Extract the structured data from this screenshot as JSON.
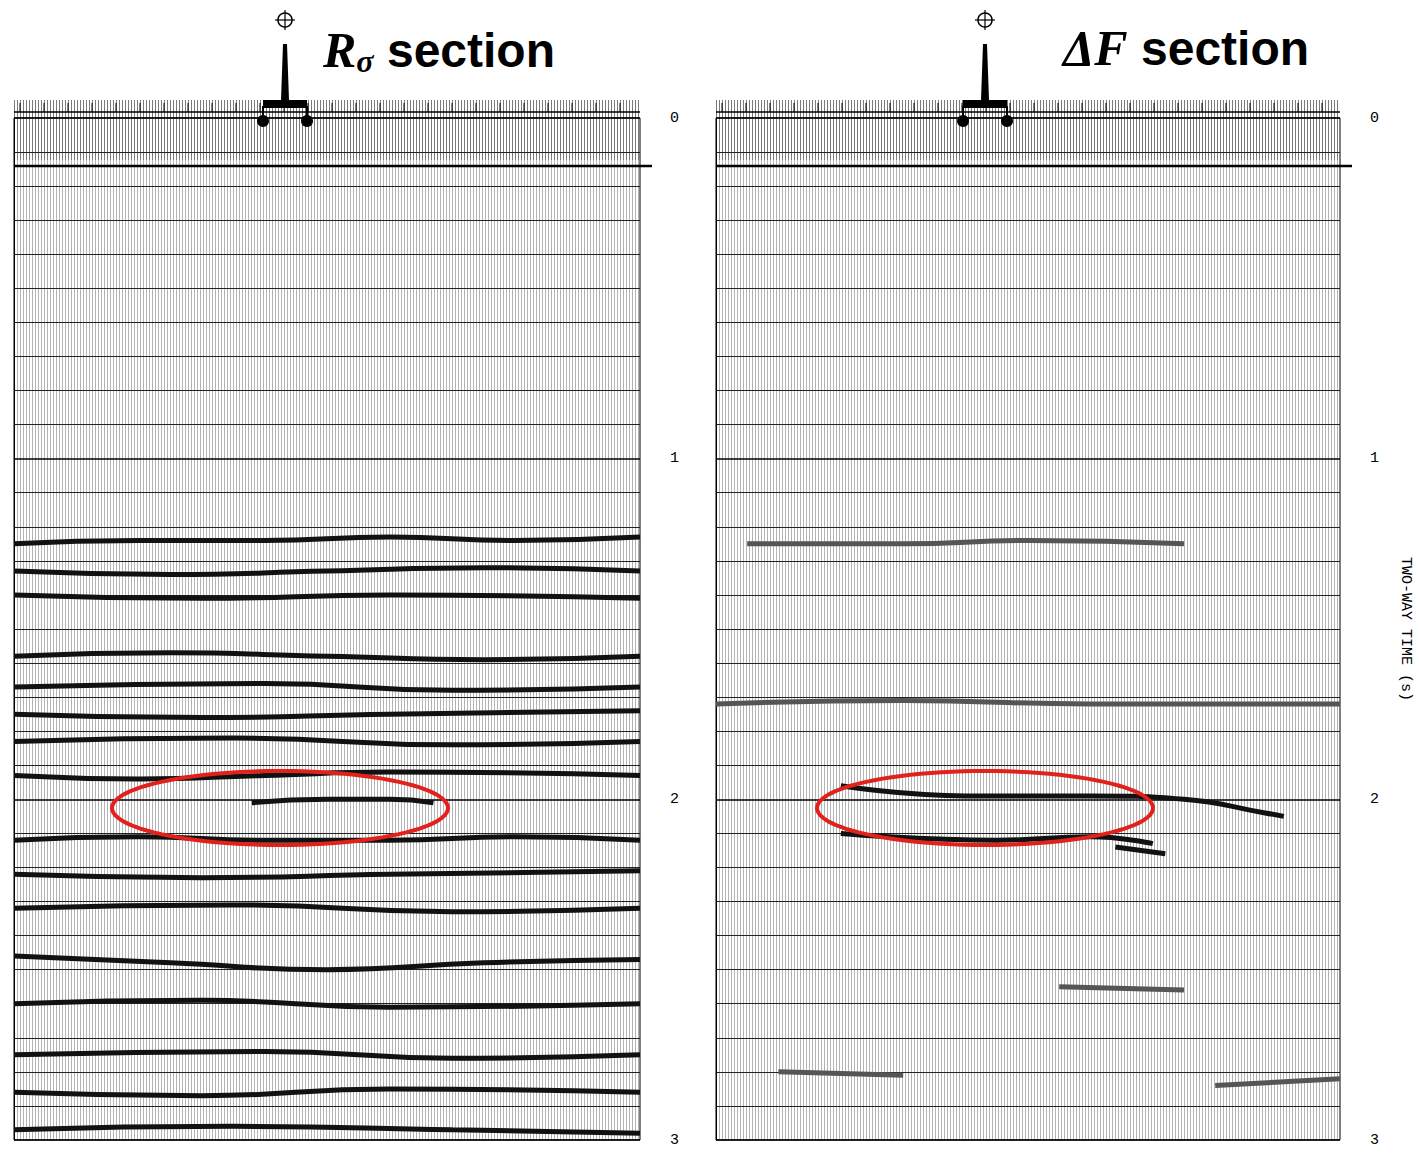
{
  "chart_data": [
    {
      "type": "line",
      "title": "Rσ section",
      "xlim": [
        0,
        100
      ],
      "ylim": [
        0,
        3
      ],
      "yticks": [
        0,
        1,
        2,
        3
      ],
      "grid": true,
      "tick_labels": "y",
      "series": [
        {
          "color": "#111111",
          "x": [
            0,
            20,
            40,
            60,
            80,
            100
          ],
          "values": [
            1.25,
            1.24,
            1.24,
            1.23,
            1.24,
            1.23
          ]
        },
        {
          "color": "#111111",
          "x": [
            0,
            25,
            50,
            75,
            100
          ],
          "values": [
            1.33,
            1.34,
            1.33,
            1.32,
            1.33
          ]
        },
        {
          "color": "#111111",
          "x": [
            0,
            30,
            60,
            100
          ],
          "values": [
            1.4,
            1.41,
            1.4,
            1.41
          ]
        },
        {
          "color": "#111111",
          "x": [
            0,
            25,
            50,
            75,
            100
          ],
          "values": [
            1.58,
            1.57,
            1.58,
            1.59,
            1.58
          ]
        },
        {
          "color": "#111111",
          "x": [
            0,
            40,
            70,
            100
          ],
          "values": [
            1.67,
            1.66,
            1.68,
            1.67
          ]
        },
        {
          "color": "#111111",
          "x": [
            0,
            30,
            60,
            100
          ],
          "values": [
            1.75,
            1.76,
            1.75,
            1.74
          ]
        },
        {
          "color": "#111111",
          "x": [
            0,
            35,
            70,
            100
          ],
          "values": [
            1.83,
            1.82,
            1.84,
            1.83
          ]
        },
        {
          "color": "#111111",
          "x": [
            0,
            20,
            40,
            60,
            100
          ],
          "values": [
            1.93,
            1.94,
            1.93,
            1.92,
            1.93
          ]
        },
        {
          "color": "#111111",
          "x": [
            38,
            50,
            60,
            67
          ],
          "values": [
            2.01,
            2.0,
            2.0,
            2.01
          ]
        },
        {
          "color": "#111111",
          "x": [
            0,
            20,
            40,
            60,
            80,
            100
          ],
          "values": [
            2.12,
            2.11,
            2.12,
            2.12,
            2.11,
            2.12
          ]
        },
        {
          "color": "#111111",
          "x": [
            0,
            30,
            60,
            100
          ],
          "values": [
            2.22,
            2.23,
            2.22,
            2.21
          ]
        },
        {
          "color": "#111111",
          "x": [
            0,
            35,
            70,
            100
          ],
          "values": [
            2.32,
            2.31,
            2.33,
            2.32
          ]
        },
        {
          "color": "#111111",
          "x": [
            0,
            25,
            50,
            75,
            100
          ],
          "values": [
            2.46,
            2.48,
            2.5,
            2.48,
            2.47
          ]
        },
        {
          "color": "#111111",
          "x": [
            0,
            30,
            60,
            100
          ],
          "values": [
            2.6,
            2.59,
            2.61,
            2.6
          ]
        },
        {
          "color": "#111111",
          "x": [
            0,
            40,
            70,
            100
          ],
          "values": [
            2.75,
            2.74,
            2.76,
            2.75
          ]
        },
        {
          "color": "#111111",
          "x": [
            0,
            30,
            60,
            100
          ],
          "values": [
            2.86,
            2.87,
            2.85,
            2.86
          ]
        },
        {
          "color": "#111111",
          "x": [
            0,
            35,
            70,
            100
          ],
          "values": [
            2.97,
            2.96,
            2.97,
            2.98
          ]
        }
      ]
    },
    {
      "type": "line",
      "title": "ΔF section",
      "ylabel": "TWO-WAY TIME (s)",
      "xlim": [
        0,
        100
      ],
      "ylim": [
        0,
        3
      ],
      "yticks": [
        0,
        1,
        2,
        3
      ],
      "grid": true,
      "tick_labels": "y",
      "series": [
        {
          "color": "#555555",
          "x": [
            5,
            30,
            50,
            75
          ],
          "values": [
            1.25,
            1.25,
            1.24,
            1.25
          ]
        },
        {
          "color": "#555555",
          "x": [
            0,
            30,
            60,
            100
          ],
          "values": [
            1.72,
            1.71,
            1.72,
            1.72
          ]
        },
        {
          "color": "#111111",
          "x": [
            20,
            40,
            60,
            75,
            88,
            91
          ],
          "values": [
            1.96,
            1.99,
            1.99,
            2.0,
            2.04,
            2.05
          ]
        },
        {
          "color": "#111111",
          "x": [
            20,
            45,
            60,
            70
          ],
          "values": [
            2.1,
            2.12,
            2.11,
            2.13
          ]
        },
        {
          "color": "#111111",
          "x": [
            64,
            72
          ],
          "values": [
            2.14,
            2.16
          ]
        },
        {
          "color": "#555555",
          "x": [
            55,
            75
          ],
          "values": [
            2.55,
            2.56
          ]
        },
        {
          "color": "#555555",
          "x": [
            10,
            30
          ],
          "values": [
            2.8,
            2.81
          ]
        },
        {
          "color": "#555555",
          "x": [
            80,
            100
          ],
          "values": [
            2.84,
            2.82
          ]
        }
      ]
    }
  ]
}
